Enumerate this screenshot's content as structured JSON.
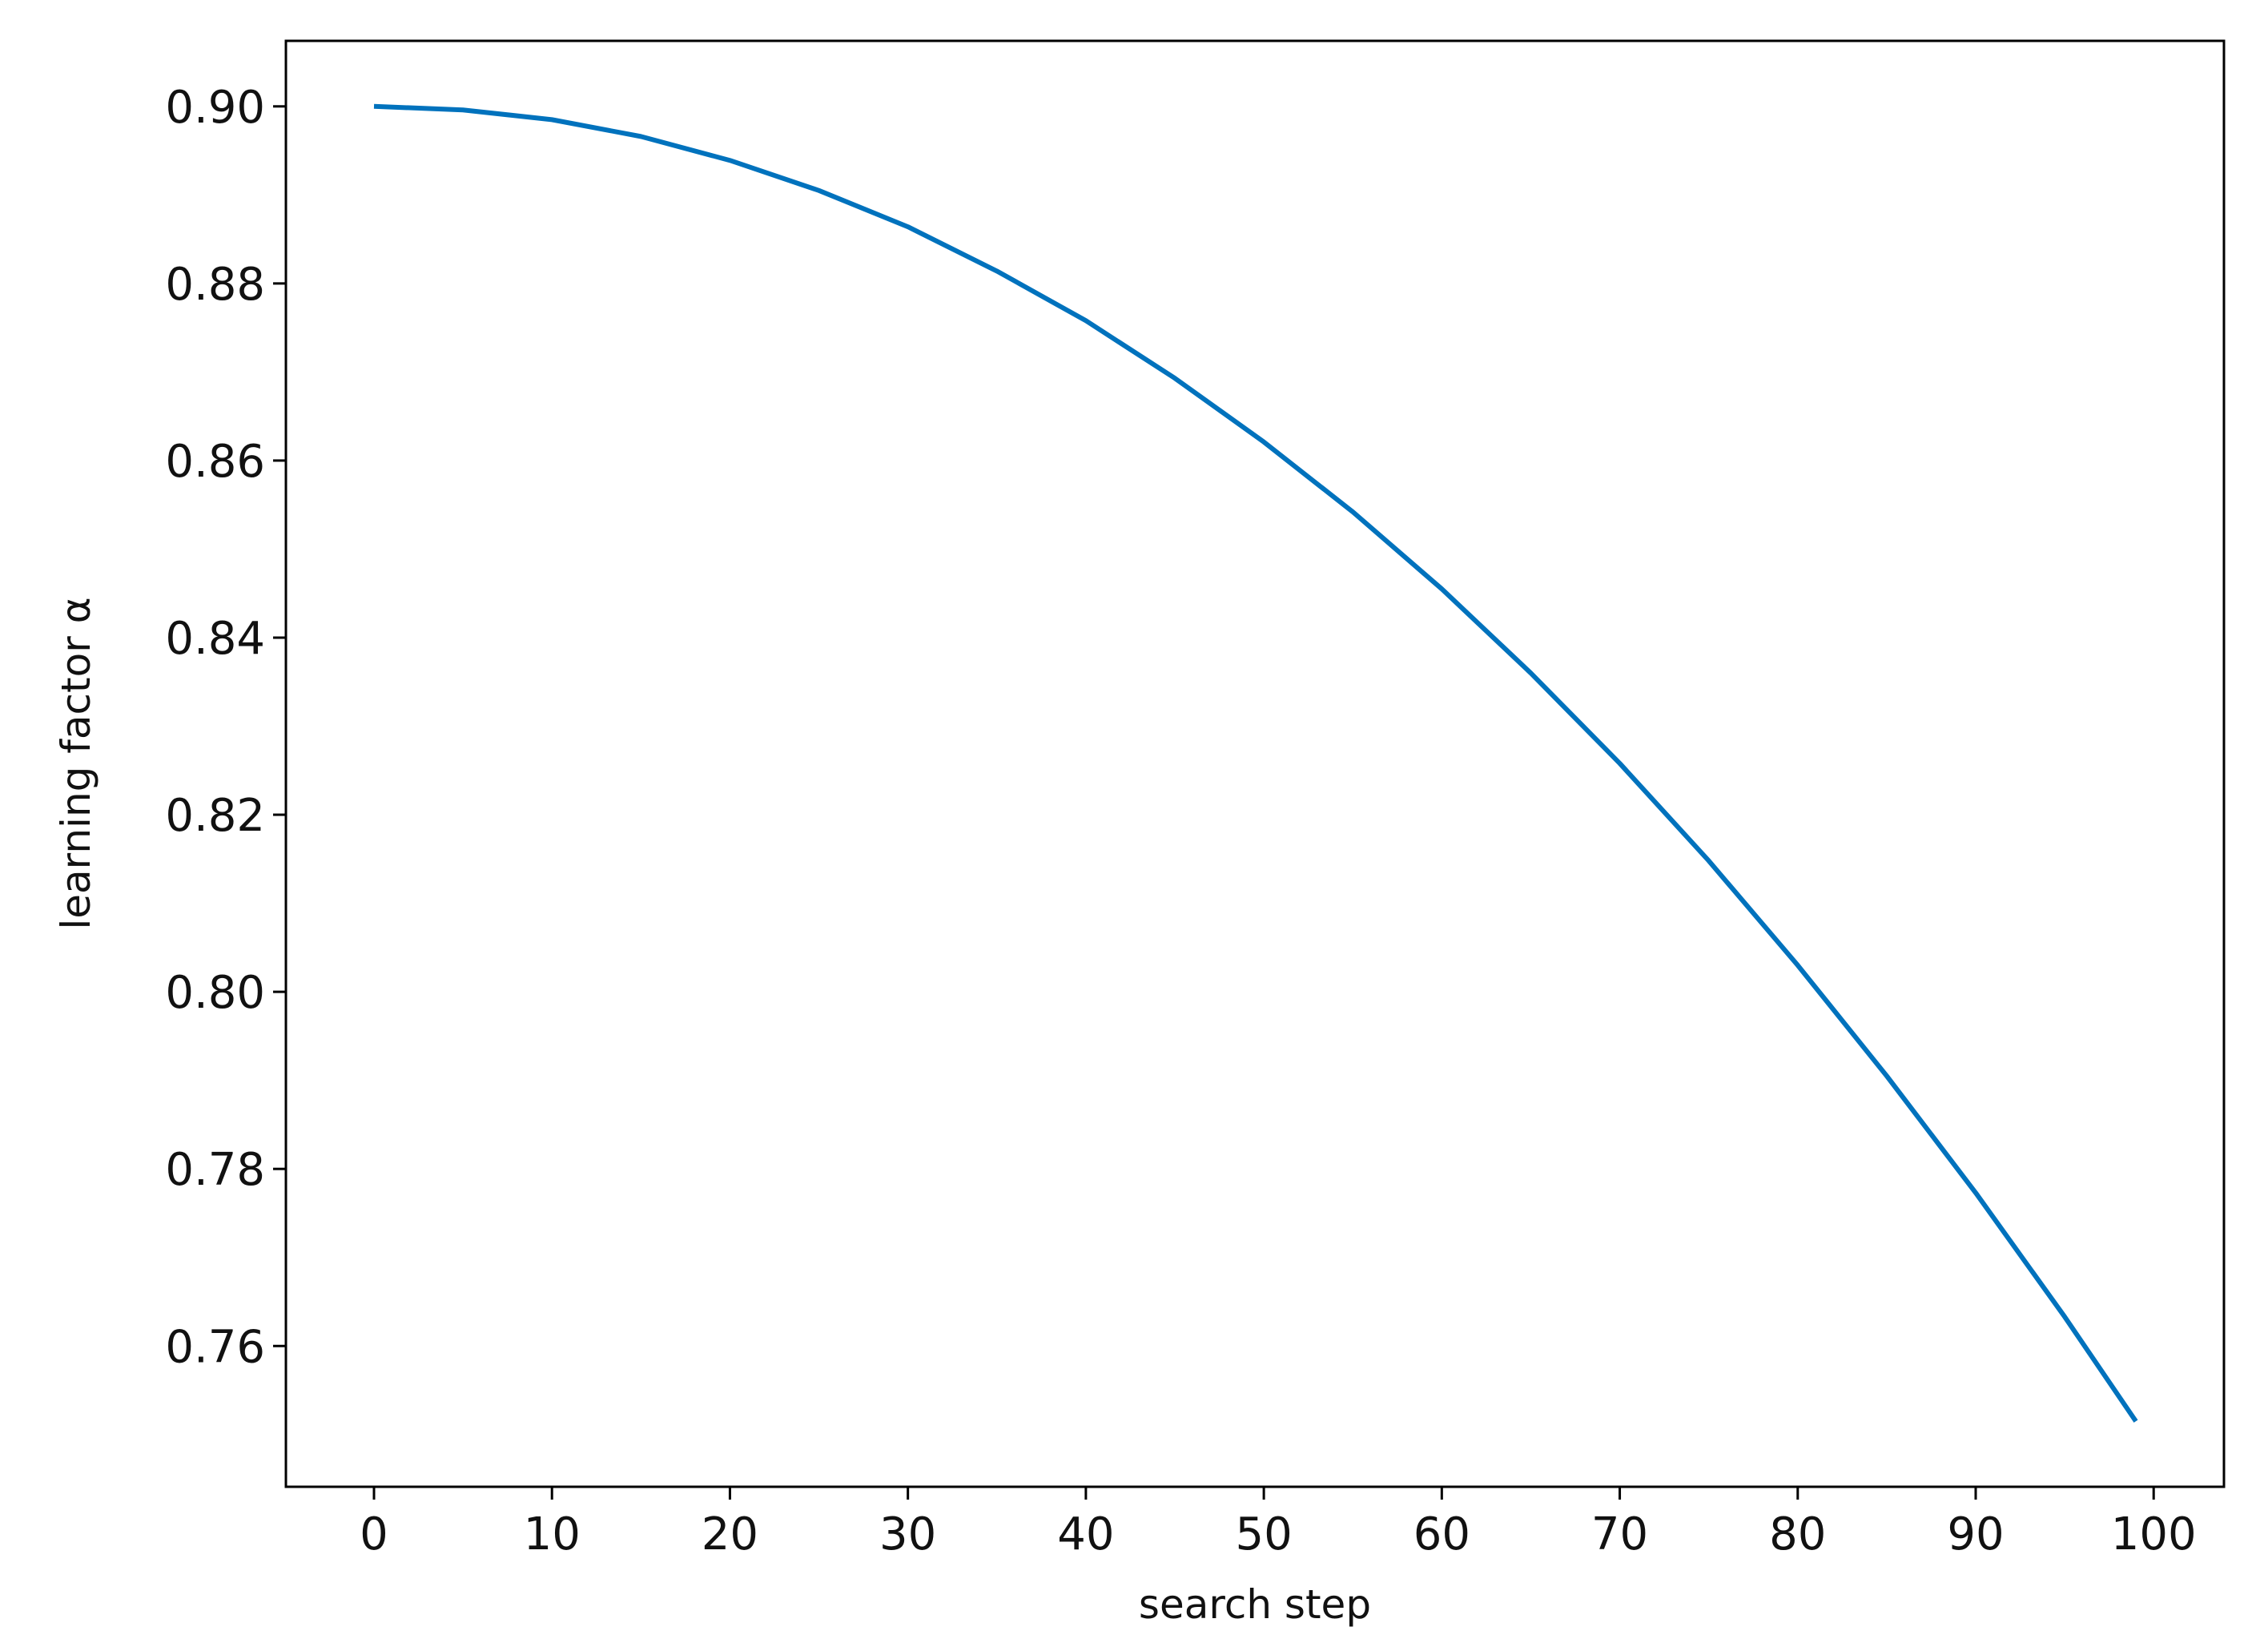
{
  "chart_data": {
    "type": "line",
    "x_label": "search step",
    "y_label": "learning factor α",
    "x": [
      0,
      5,
      10,
      15,
      20,
      25,
      30,
      35,
      40,
      45,
      50,
      55,
      60,
      65,
      70,
      75,
      80,
      85,
      90,
      95,
      99
    ],
    "series": [
      {
        "color": "#0072bd",
        "values": [
          0.9,
          0.8996,
          0.8985,
          0.8966,
          0.8939,
          0.8905,
          0.8864,
          0.8814,
          0.8758,
          0.8693,
          0.8621,
          0.8542,
          0.8455,
          0.836,
          0.8258,
          0.8148,
          0.803,
          0.7905,
          0.7773,
          0.7633,
          0.7515
        ]
      }
    ],
    "xlim": [
      -4.95,
      103.95
    ],
    "ylim": [
      0.7441,
      0.9074
    ],
    "xticks": [
      0,
      10,
      20,
      30,
      40,
      50,
      60,
      70,
      80,
      90,
      100
    ],
    "yticks": [
      {
        "value": 0.76,
        "label": "0.76"
      },
      {
        "value": 0.78,
        "label": "0.78"
      },
      {
        "value": 0.8,
        "label": "0.80"
      },
      {
        "value": 0.82,
        "label": "0.82"
      },
      {
        "value": 0.84,
        "label": "0.84"
      },
      {
        "value": 0.86,
        "label": "0.86"
      },
      {
        "value": 0.88,
        "label": "0.88"
      },
      {
        "value": 0.9,
        "label": "0.90"
      }
    ],
    "grid": false
  }
}
